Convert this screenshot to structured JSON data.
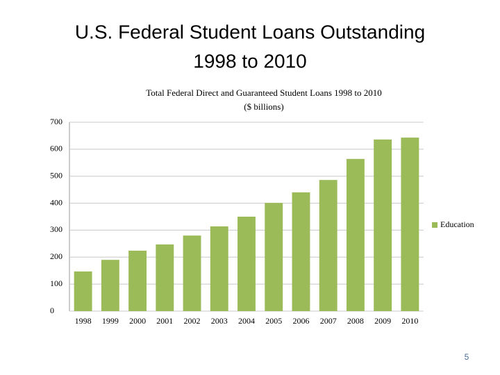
{
  "slide": {
    "title_lines": [
      "U.S. Federal Student Loans Outstanding",
      "1998 to 2010"
    ],
    "page_number": "5"
  },
  "chart_data": {
    "type": "bar",
    "title": "Total Federal Direct and Guaranteed Student Loans 1998 to 2010",
    "subtitle": "($ billions)",
    "categories": [
      "1998",
      "1999",
      "2000",
      "2001",
      "2002",
      "2003",
      "2004",
      "2005",
      "2006",
      "2007",
      "2008",
      "2009",
      "2010"
    ],
    "series": [
      {
        "name": "Education",
        "color": "#9bbb59",
        "values": [
          147,
          190,
          224,
          247,
          280,
          314,
          350,
          401,
          440,
          486,
          564,
          636,
          643
        ]
      }
    ],
    "ylim": [
      0,
      700
    ],
    "yticks": [
      0,
      100,
      200,
      300,
      400,
      500,
      600,
      700
    ],
    "grid": true,
    "legend": "right"
  }
}
